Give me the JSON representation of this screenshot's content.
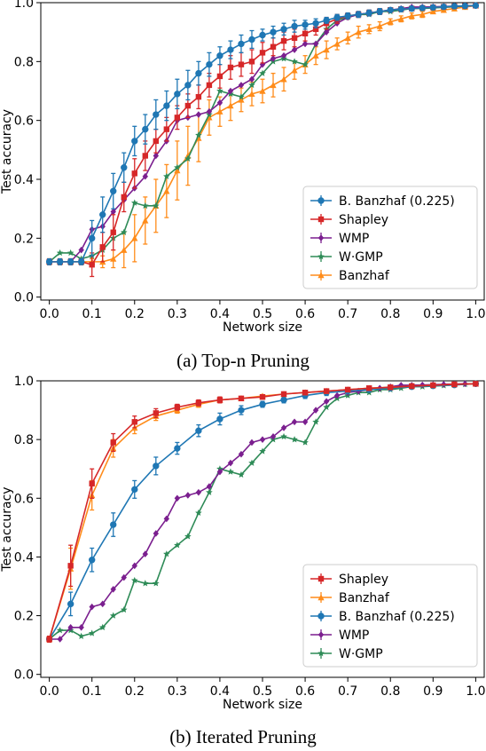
{
  "captions": {
    "top": "(a) Top-n Pruning",
    "bottom": "(b) Iterated Pruning"
  },
  "chart_data": [
    {
      "type": "line",
      "title": "",
      "xlabel": "Network size",
      "ylabel": "Test accuracy",
      "xlim": [
        -0.02,
        1.02
      ],
      "ylim": [
        -0.01,
        1.0
      ],
      "xticks": [
        0.0,
        0.1,
        0.2,
        0.3,
        0.4,
        0.5,
        0.6,
        0.7,
        0.8,
        0.9,
        1.0
      ],
      "xtick_labels": [
        "0.0",
        "0.1",
        "0.2",
        "0.3",
        "0.4",
        "0.5",
        "0.6",
        "0.7",
        "0.8",
        "0.9",
        "1.0"
      ],
      "yticks": [
        0.0,
        0.2,
        0.4,
        0.6,
        0.8,
        1.0
      ],
      "ytick_labels": [
        "0.0",
        "0.2",
        "0.4",
        "0.6",
        "0.8",
        "1.0"
      ],
      "grid": false,
      "legend_position": "lower-right",
      "series": [
        {
          "name": "B. Banzhaf (0.225)",
          "color": "#1f77b4",
          "marker": "circle",
          "x": [
            0.0,
            0.025,
            0.05,
            0.075,
            0.1,
            0.125,
            0.15,
            0.175,
            0.2,
            0.225,
            0.25,
            0.275,
            0.3,
            0.325,
            0.35,
            0.375,
            0.4,
            0.425,
            0.45,
            0.475,
            0.5,
            0.525,
            0.55,
            0.575,
            0.6,
            0.625,
            0.65,
            0.675,
            0.7,
            0.725,
            0.75,
            0.775,
            0.8,
            0.825,
            0.85,
            0.875,
            0.9,
            0.925,
            0.95,
            0.975,
            1.0
          ],
          "y": [
            0.12,
            0.12,
            0.12,
            0.12,
            0.2,
            0.28,
            0.36,
            0.44,
            0.53,
            0.57,
            0.62,
            0.65,
            0.69,
            0.72,
            0.76,
            0.79,
            0.82,
            0.84,
            0.86,
            0.875,
            0.89,
            0.9,
            0.91,
            0.92,
            0.925,
            0.93,
            0.94,
            0.95,
            0.955,
            0.96,
            0.965,
            0.97,
            0.975,
            0.978,
            0.98,
            0.982,
            0.984,
            0.986,
            0.988,
            0.989,
            0.99
          ],
          "err": [
            0.01,
            0.01,
            0.01,
            0.01,
            0.06,
            0.06,
            0.06,
            0.05,
            0.05,
            0.05,
            0.05,
            0.05,
            0.05,
            0.05,
            0.04,
            0.04,
            0.03,
            0.03,
            0.03,
            0.03,
            0.02,
            0.02,
            0.02,
            0.02,
            0.015,
            0.015,
            0.01,
            0.01,
            0.01,
            0.01,
            0.01,
            0.01,
            0.005,
            0.005,
            0.005,
            0.005,
            0.005,
            0.005,
            0.005,
            0.005,
            0.005
          ]
        },
        {
          "name": "Shapley",
          "color": "#d62728",
          "marker": "square",
          "x": [
            0.0,
            0.025,
            0.05,
            0.075,
            0.1,
            0.125,
            0.15,
            0.175,
            0.2,
            0.225,
            0.25,
            0.275,
            0.3,
            0.325,
            0.35,
            0.375,
            0.4,
            0.425,
            0.45,
            0.475,
            0.5,
            0.525,
            0.55,
            0.575,
            0.6,
            0.625,
            0.65,
            0.675,
            0.7,
            0.725,
            0.75,
            0.775,
            0.8,
            0.825,
            0.85,
            0.875,
            0.9,
            0.925,
            0.95,
            0.975,
            1.0
          ],
          "y": [
            0.12,
            0.12,
            0.12,
            0.12,
            0.11,
            0.17,
            0.22,
            0.34,
            0.42,
            0.48,
            0.53,
            0.57,
            0.61,
            0.65,
            0.68,
            0.72,
            0.75,
            0.78,
            0.79,
            0.8,
            0.83,
            0.85,
            0.87,
            0.88,
            0.895,
            0.91,
            0.93,
            0.945,
            0.955,
            0.96,
            0.965,
            0.97,
            0.975,
            0.978,
            0.98,
            0.982,
            0.984,
            0.986,
            0.988,
            0.989,
            0.99
          ],
          "err": [
            0.01,
            0.01,
            0.01,
            0.01,
            0.04,
            0.05,
            0.06,
            0.05,
            0.05,
            0.05,
            0.04,
            0.04,
            0.04,
            0.04,
            0.04,
            0.04,
            0.04,
            0.04,
            0.04,
            0.04,
            0.035,
            0.03,
            0.03,
            0.03,
            0.025,
            0.02,
            0.02,
            0.015,
            0.01,
            0.01,
            0.01,
            0.01,
            0.005,
            0.005,
            0.005,
            0.005,
            0.005,
            0.005,
            0.005,
            0.005,
            0.005
          ]
        },
        {
          "name": "WMP",
          "color": "#7b1f8f",
          "marker": "diamond",
          "x": [
            0.0,
            0.025,
            0.05,
            0.075,
            0.1,
            0.125,
            0.15,
            0.175,
            0.2,
            0.225,
            0.25,
            0.275,
            0.3,
            0.325,
            0.35,
            0.375,
            0.4,
            0.425,
            0.45,
            0.475,
            0.5,
            0.525,
            0.55,
            0.575,
            0.6,
            0.625,
            0.65,
            0.675,
            0.7,
            0.725,
            0.75,
            0.775,
            0.8,
            0.825,
            0.85,
            0.875,
            0.9,
            0.925,
            0.95,
            0.975,
            1.0
          ],
          "y": [
            0.12,
            0.12,
            0.12,
            0.16,
            0.23,
            0.24,
            0.29,
            0.33,
            0.37,
            0.41,
            0.48,
            0.53,
            0.6,
            0.61,
            0.62,
            0.63,
            0.66,
            0.7,
            0.72,
            0.74,
            0.79,
            0.81,
            0.82,
            0.84,
            0.86,
            0.86,
            0.9,
            0.93,
            0.95,
            0.96,
            0.965,
            0.97,
            0.975,
            0.98,
            0.985,
            0.985,
            0.986,
            0.987,
            0.988,
            0.989,
            0.99
          ]
        },
        {
          "name": "W·GMP",
          "color": "#2e8b57",
          "marker": "star",
          "x": [
            0.0,
            0.025,
            0.05,
            0.075,
            0.1,
            0.125,
            0.15,
            0.175,
            0.2,
            0.225,
            0.25,
            0.275,
            0.3,
            0.325,
            0.35,
            0.375,
            0.4,
            0.425,
            0.45,
            0.475,
            0.5,
            0.525,
            0.55,
            0.575,
            0.6,
            0.625,
            0.65,
            0.675,
            0.7,
            0.725,
            0.75,
            0.775,
            0.8,
            0.825,
            0.85,
            0.875,
            0.9,
            0.925,
            0.95,
            0.975,
            1.0
          ],
          "y": [
            0.12,
            0.15,
            0.15,
            0.13,
            0.14,
            0.16,
            0.2,
            0.22,
            0.32,
            0.31,
            0.31,
            0.41,
            0.44,
            0.47,
            0.55,
            0.62,
            0.7,
            0.69,
            0.68,
            0.72,
            0.76,
            0.8,
            0.81,
            0.8,
            0.79,
            0.86,
            0.91,
            0.94,
            0.95,
            0.96,
            0.96,
            0.97,
            0.97,
            0.975,
            0.98,
            0.98,
            0.982,
            0.984,
            0.986,
            0.988,
            0.99
          ]
        },
        {
          "name": "Banzhaf",
          "color": "#ff8c1a",
          "marker": "triangle",
          "x": [
            0.0,
            0.025,
            0.05,
            0.075,
            0.1,
            0.125,
            0.15,
            0.175,
            0.2,
            0.225,
            0.25,
            0.275,
            0.3,
            0.325,
            0.35,
            0.375,
            0.4,
            0.425,
            0.45,
            0.475,
            0.5,
            0.525,
            0.55,
            0.575,
            0.6,
            0.625,
            0.65,
            0.675,
            0.7,
            0.725,
            0.75,
            0.775,
            0.8,
            0.825,
            0.85,
            0.875,
            0.9,
            0.925,
            0.95,
            0.975,
            1.0
          ],
          "y": [
            0.12,
            0.12,
            0.12,
            0.12,
            0.12,
            0.12,
            0.13,
            0.16,
            0.2,
            0.26,
            0.31,
            0.36,
            0.43,
            0.48,
            0.54,
            0.61,
            0.63,
            0.65,
            0.67,
            0.69,
            0.7,
            0.72,
            0.74,
            0.77,
            0.79,
            0.82,
            0.84,
            0.86,
            0.88,
            0.9,
            0.91,
            0.92,
            0.935,
            0.945,
            0.955,
            0.96,
            0.97,
            0.975,
            0.98,
            0.985,
            0.99
          ],
          "err": [
            0.01,
            0.01,
            0.01,
            0.01,
            0.01,
            0.02,
            0.03,
            0.06,
            0.08,
            0.08,
            0.09,
            0.09,
            0.1,
            0.1,
            0.08,
            0.06,
            0.05,
            0.05,
            0.04,
            0.04,
            0.04,
            0.04,
            0.04,
            0.03,
            0.03,
            0.03,
            0.03,
            0.02,
            0.02,
            0.02,
            0.015,
            0.015,
            0.01,
            0.01,
            0.01,
            0.01,
            0.005,
            0.005,
            0.005,
            0.005,
            0.005
          ]
        }
      ]
    },
    {
      "type": "line",
      "title": "",
      "xlabel": "Network size",
      "ylabel": "Test accuracy",
      "xlim": [
        -0.02,
        1.02
      ],
      "ylim": [
        -0.01,
        1.0
      ],
      "xticks": [
        0.0,
        0.1,
        0.2,
        0.3,
        0.4,
        0.5,
        0.6,
        0.7,
        0.8,
        0.9,
        1.0
      ],
      "xtick_labels": [
        "0.0",
        "0.1",
        "0.2",
        "0.3",
        "0.4",
        "0.5",
        "0.6",
        "0.7",
        "0.8",
        "0.9",
        "1.0"
      ],
      "yticks": [
        0.0,
        0.2,
        0.4,
        0.6,
        0.8,
        1.0
      ],
      "ytick_labels": [
        "0.0",
        "0.2",
        "0.4",
        "0.6",
        "0.8",
        "1.0"
      ],
      "grid": false,
      "legend_position": "lower-right",
      "series": [
        {
          "name": "Shapley",
          "color": "#d62728",
          "marker": "square",
          "x": [
            0.0,
            0.05,
            0.1,
            0.15,
            0.2,
            0.25,
            0.3,
            0.35,
            0.4,
            0.45,
            0.5,
            0.55,
            0.6,
            0.65,
            0.7,
            0.75,
            0.8,
            0.85,
            0.9,
            0.95,
            1.0
          ],
          "y": [
            0.12,
            0.37,
            0.65,
            0.79,
            0.86,
            0.89,
            0.91,
            0.925,
            0.935,
            0.94,
            0.945,
            0.955,
            0.96,
            0.965,
            0.97,
            0.975,
            0.978,
            0.982,
            0.985,
            0.988,
            0.99
          ],
          "err": [
            0.01,
            0.07,
            0.05,
            0.03,
            0.02,
            0.015,
            0.01,
            0.01,
            0.01,
            0.005,
            0.005,
            0.005,
            0.005,
            0.005,
            0.005,
            0.005,
            0.005,
            0.005,
            0.005,
            0.005,
            0.005
          ]
        },
        {
          "name": "Banzhaf",
          "color": "#ff8c1a",
          "marker": "triangle",
          "x": [
            0.0,
            0.05,
            0.1,
            0.15,
            0.2,
            0.25,
            0.3,
            0.35,
            0.4,
            0.45,
            0.5,
            0.55,
            0.6,
            0.65,
            0.7,
            0.75,
            0.8,
            0.85,
            0.9,
            0.95,
            1.0
          ],
          "y": [
            0.12,
            0.36,
            0.61,
            0.77,
            0.84,
            0.88,
            0.9,
            0.92,
            0.935,
            0.94,
            0.948,
            0.955,
            0.96,
            0.965,
            0.97,
            0.975,
            0.978,
            0.982,
            0.985,
            0.988,
            0.99
          ],
          "err": [
            0.01,
            0.07,
            0.05,
            0.03,
            0.02,
            0.015,
            0.01,
            0.01,
            0.01,
            0.005,
            0.005,
            0.005,
            0.005,
            0.005,
            0.005,
            0.005,
            0.005,
            0.005,
            0.005,
            0.005,
            0.005
          ]
        },
        {
          "name": "B. Banzhaf (0.225)",
          "color": "#1f77b4",
          "marker": "circle",
          "x": [
            0.0,
            0.05,
            0.1,
            0.15,
            0.2,
            0.25,
            0.3,
            0.35,
            0.4,
            0.45,
            0.5,
            0.55,
            0.6,
            0.65,
            0.7,
            0.75,
            0.8,
            0.85,
            0.9,
            0.95,
            1.0
          ],
          "y": [
            0.12,
            0.24,
            0.39,
            0.51,
            0.63,
            0.71,
            0.77,
            0.83,
            0.87,
            0.9,
            0.92,
            0.935,
            0.95,
            0.96,
            0.965,
            0.97,
            0.975,
            0.98,
            0.983,
            0.986,
            0.99
          ],
          "err": [
            0.01,
            0.04,
            0.04,
            0.04,
            0.03,
            0.03,
            0.02,
            0.02,
            0.02,
            0.015,
            0.01,
            0.01,
            0.01,
            0.01,
            0.005,
            0.005,
            0.005,
            0.005,
            0.005,
            0.005,
            0.005
          ]
        },
        {
          "name": "WMP",
          "color": "#7b1f8f",
          "marker": "diamond",
          "x": [
            0.0,
            0.025,
            0.05,
            0.075,
            0.1,
            0.125,
            0.15,
            0.175,
            0.2,
            0.225,
            0.25,
            0.275,
            0.3,
            0.325,
            0.35,
            0.375,
            0.4,
            0.425,
            0.45,
            0.475,
            0.5,
            0.525,
            0.55,
            0.575,
            0.6,
            0.625,
            0.65,
            0.675,
            0.7,
            0.725,
            0.75,
            0.775,
            0.8,
            0.825,
            0.85,
            0.875,
            0.9,
            0.925,
            0.95,
            0.975,
            1.0
          ],
          "y": [
            0.12,
            0.12,
            0.16,
            0.16,
            0.23,
            0.24,
            0.29,
            0.33,
            0.37,
            0.41,
            0.48,
            0.53,
            0.6,
            0.61,
            0.62,
            0.64,
            0.69,
            0.72,
            0.75,
            0.79,
            0.8,
            0.81,
            0.84,
            0.86,
            0.86,
            0.9,
            0.93,
            0.95,
            0.96,
            0.965,
            0.97,
            0.975,
            0.98,
            0.985,
            0.985,
            0.986,
            0.987,
            0.988,
            0.989,
            0.99,
            0.99
          ]
        },
        {
          "name": "W·GMP",
          "color": "#2e8b57",
          "marker": "star",
          "x": [
            0.0,
            0.025,
            0.05,
            0.075,
            0.1,
            0.125,
            0.15,
            0.175,
            0.2,
            0.225,
            0.25,
            0.275,
            0.3,
            0.325,
            0.35,
            0.375,
            0.4,
            0.425,
            0.45,
            0.475,
            0.5,
            0.525,
            0.55,
            0.575,
            0.6,
            0.625,
            0.65,
            0.675,
            0.7,
            0.725,
            0.75,
            0.775,
            0.8,
            0.825,
            0.85,
            0.875,
            0.9,
            0.925,
            0.95,
            0.975,
            1.0
          ],
          "y": [
            0.12,
            0.15,
            0.15,
            0.13,
            0.14,
            0.16,
            0.2,
            0.22,
            0.32,
            0.31,
            0.31,
            0.41,
            0.44,
            0.47,
            0.55,
            0.62,
            0.7,
            0.69,
            0.68,
            0.72,
            0.76,
            0.8,
            0.81,
            0.8,
            0.79,
            0.86,
            0.91,
            0.94,
            0.95,
            0.96,
            0.96,
            0.97,
            0.97,
            0.975,
            0.98,
            0.98,
            0.982,
            0.984,
            0.986,
            0.988,
            0.99
          ]
        }
      ]
    }
  ]
}
